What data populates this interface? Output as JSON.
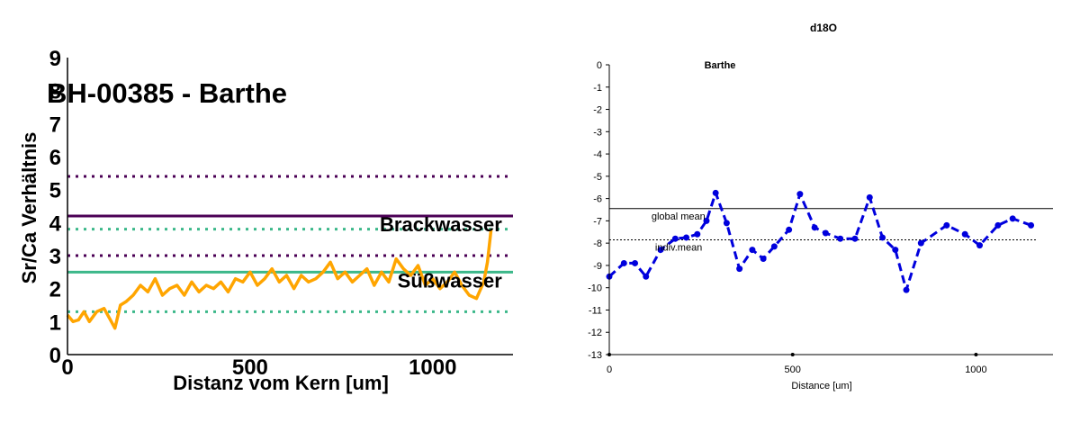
{
  "chart_data": [
    {
      "type": "line",
      "title": "BH-00385 - Barthe",
      "xlabel": "Distanz vom Kern [um]",
      "ylabel": "Sr/Ca Verhältnis",
      "xlim": [
        0,
        1220
      ],
      "ylim": [
        0,
        9
      ],
      "xticks": [
        "0",
        "500",
        "1000"
      ],
      "yticks": [
        "0",
        "1",
        "2",
        "3",
        "4",
        "5",
        "6",
        "7",
        "8",
        "9"
      ],
      "grid": false,
      "series": [
        {
          "color": "#ffa500",
          "x": [
            0,
            15,
            30,
            45,
            60,
            80,
            100,
            115,
            130,
            145,
            160,
            180,
            200,
            220,
            240,
            260,
            280,
            300,
            320,
            340,
            360,
            380,
            400,
            420,
            440,
            460,
            480,
            500,
            520,
            540,
            560,
            580,
            600,
            620,
            640,
            660,
            680,
            700,
            720,
            740,
            760,
            780,
            800,
            820,
            840,
            860,
            880,
            900,
            920,
            940,
            960,
            980,
            1000,
            1020,
            1040,
            1060,
            1080,
            1100,
            1120,
            1140,
            1150,
            1160
          ],
          "y": [
            1.2,
            1.0,
            1.05,
            1.3,
            1.0,
            1.3,
            1.4,
            1.1,
            0.8,
            1.5,
            1.6,
            1.8,
            2.1,
            1.9,
            2.3,
            1.8,
            2.0,
            2.1,
            1.8,
            2.2,
            1.9,
            2.1,
            2.0,
            2.2,
            1.9,
            2.3,
            2.2,
            2.5,
            2.1,
            2.3,
            2.6,
            2.2,
            2.4,
            2.0,
            2.4,
            2.2,
            2.3,
            2.5,
            2.8,
            2.3,
            2.5,
            2.2,
            2.4,
            2.6,
            2.1,
            2.5,
            2.2,
            2.9,
            2.6,
            2.4,
            2.7,
            2.1,
            2.3,
            2.0,
            2.2,
            2.5,
            2.1,
            1.8,
            1.7,
            2.2,
            2.8,
            3.8
          ]
        }
      ],
      "reference_lines": [
        {
          "y": 4.2,
          "style": "solid",
          "color": "#4b0055"
        },
        {
          "y": 5.4,
          "style": "dotted",
          "color": "#4b0055"
        },
        {
          "y": 3.0,
          "style": "dotted",
          "color": "#4b0055"
        },
        {
          "y": 2.5,
          "style": "solid",
          "color": "#3cb88a"
        },
        {
          "y": 3.8,
          "style": "dotted",
          "color": "#3cb88a"
        },
        {
          "y": 1.3,
          "style": "dotted",
          "color": "#3cb88a"
        }
      ],
      "annotations": [
        {
          "text": "Brackwasser",
          "x": 1190,
          "y": 3.95
        },
        {
          "text": "Süßwasser",
          "x": 1190,
          "y": 2.25
        }
      ]
    },
    {
      "type": "line",
      "title": "d18O",
      "subtitle": "Barthe",
      "xlabel": "Distance [um]",
      "ylabel": "",
      "xlim": [
        0,
        1210
      ],
      "ylim": [
        -13,
        0
      ],
      "xticks": [
        "0",
        "500",
        "1000"
      ],
      "yticks": [
        "0",
        "-1",
        "-2",
        "-3",
        "-4",
        "-5",
        "-6",
        "-7",
        "-8",
        "-9",
        "-10",
        "-11",
        "-12",
        "-13"
      ],
      "grid": false,
      "series": [
        {
          "color": "#0000dd",
          "x": [
            0,
            40,
            70,
            100,
            140,
            180,
            210,
            240,
            265,
            290,
            320,
            355,
            390,
            420,
            450,
            490,
            520,
            560,
            590,
            630,
            670,
            710,
            745,
            780,
            810,
            850,
            920,
            970,
            1010,
            1060,
            1100,
            1150
          ],
          "y": [
            -9.5,
            -8.9,
            -8.9,
            -9.5,
            -8.3,
            -7.8,
            -7.75,
            -7.6,
            -7.0,
            -5.75,
            -7.1,
            -9.15,
            -8.3,
            -8.7,
            -8.15,
            -7.4,
            -5.8,
            -7.3,
            -7.55,
            -7.8,
            -7.8,
            -5.95,
            -7.75,
            -8.3,
            -10.1,
            -8.0,
            -7.2,
            -7.6,
            -8.1,
            -7.2,
            -6.9,
            -7.2
          ]
        }
      ],
      "reference_lines": [
        {
          "y": -6.45,
          "style": "solid",
          "color": "#000000"
        },
        {
          "y": -7.85,
          "style": "dotted",
          "color": "#000000"
        }
      ],
      "annotations": [
        {
          "text": "global mean",
          "x": 115,
          "y": -6.45
        },
        {
          "text": "indiv.mean",
          "x": 125,
          "y": -7.85
        }
      ]
    }
  ]
}
